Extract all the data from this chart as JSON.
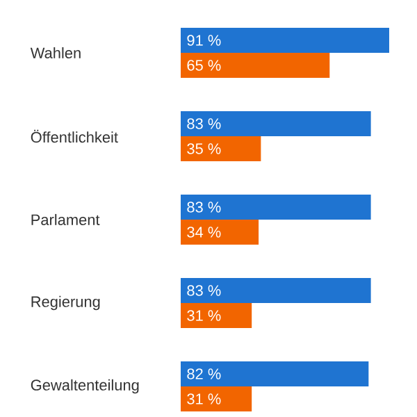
{
  "chart_data": {
    "type": "bar",
    "orientation": "horizontal",
    "categories": [
      "Wahlen",
      "Öffentlichkeit",
      "Parlament",
      "Regierung",
      "Gewaltenteilung"
    ],
    "tick_labels": "y",
    "series": [
      {
        "color": "#1f74d1",
        "values": [
          91,
          83,
          83,
          83,
          82
        ],
        "value_labels": [
          "91 %",
          "83 %",
          "83 %",
          "83 %",
          "82 %"
        ]
      },
      {
        "color": "#f26500",
        "values": [
          65,
          35,
          34,
          31,
          31
        ],
        "value_labels": [
          "65 %",
          "35 %",
          "34 %",
          "31 %",
          "31 %"
        ]
      }
    ]
  }
}
